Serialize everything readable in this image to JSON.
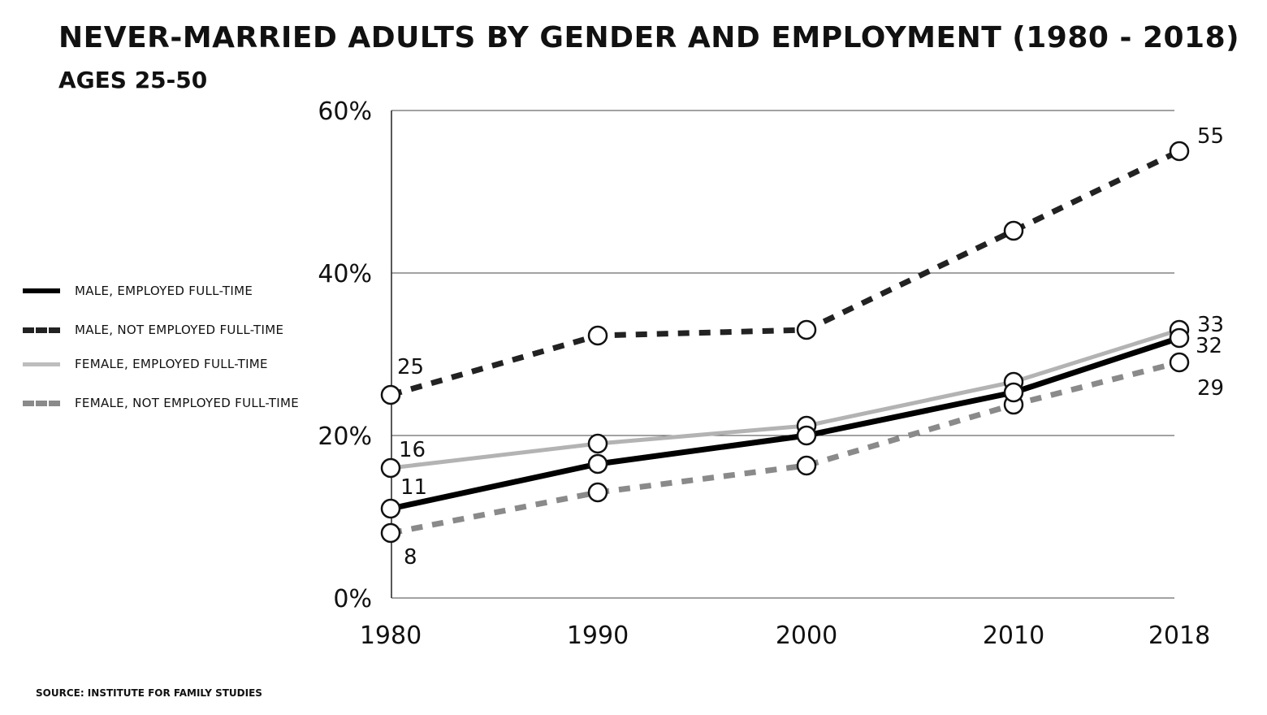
{
  "chart_data": {
    "type": "line",
    "title": "NEVER-MARRIED ADULTS BY GENDER AND EMPLOYMENT (1980 - 2018)",
    "subtitle": "AGES 25-50",
    "x": [
      1980,
      1990,
      2000,
      2010,
      2018
    ],
    "x_tick_labels": [
      "1980",
      "1990",
      "2000",
      "2010",
      "2018"
    ],
    "ylim": [
      0,
      60
    ],
    "y_ticks": [
      0,
      20,
      40,
      60
    ],
    "y_tick_labels": [
      "0%",
      "20%",
      "40%",
      "60%"
    ],
    "grid": "horizontal",
    "legend_position": "left",
    "series": [
      {
        "name": "MALE, EMPLOYED FULL-TIME",
        "values": [
          11,
          16.5,
          20,
          25.3,
          32
        ],
        "color": "#000000",
        "dash": "solid"
      },
      {
        "name": "MALE, NOT EMPLOYED FULL-TIME",
        "values": [
          25,
          32.3,
          33,
          45.2,
          55
        ],
        "color": "#222222",
        "dash": "dashed"
      },
      {
        "name": "FEMALE, EMPLOYED FULL-TIME",
        "values": [
          16,
          19,
          21.2,
          26.6,
          33
        ],
        "color": "#b3b3b3",
        "dash": "solid"
      },
      {
        "name": "FEMALE, NOT EMPLOYED FULL-TIME",
        "values": [
          8,
          13,
          16.3,
          23.8,
          29
        ],
        "color": "#8a8a8a",
        "dash": "dashed"
      }
    ],
    "annotations": [
      {
        "text": "25",
        "series": 1,
        "point": 0
      },
      {
        "text": "16",
        "series": 2,
        "point": 0
      },
      {
        "text": "11",
        "series": 0,
        "point": 0
      },
      {
        "text": "8",
        "series": 3,
        "point": 0
      },
      {
        "text": "55",
        "series": 1,
        "point": 4
      },
      {
        "text": "33",
        "series": 2,
        "point": 4
      },
      {
        "text": "32",
        "series": 0,
        "point": 4
      },
      {
        "text": "29",
        "series": 3,
        "point": 4
      }
    ],
    "source": "SOURCE: INSTITUTE FOR FAMILY STUDIES"
  }
}
